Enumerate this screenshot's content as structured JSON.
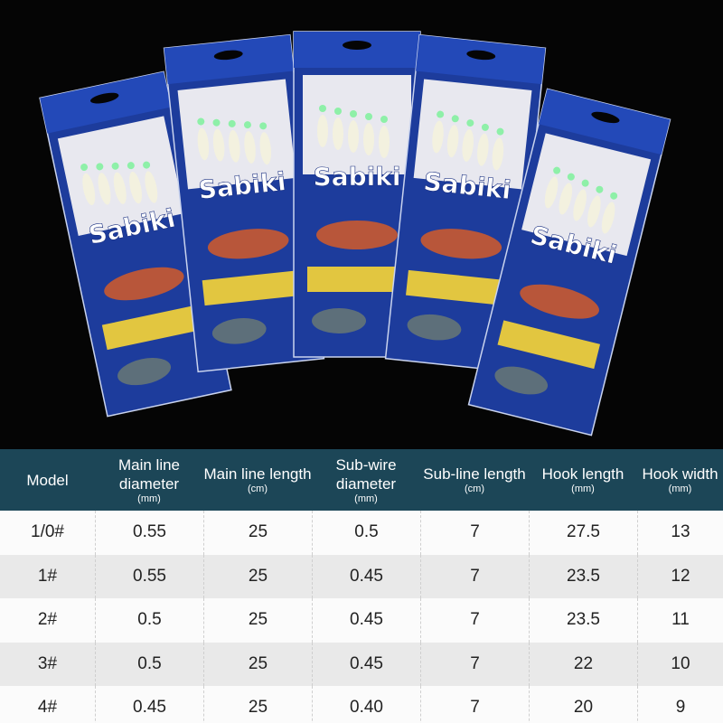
{
  "product": {
    "brand": "Sabiki"
  },
  "table": {
    "header": [
      {
        "title": "Model"
      },
      {
        "title": "Main line diameter",
        "unit": "(mm)"
      },
      {
        "title": "Main line length",
        "unit": "(cm)"
      },
      {
        "title": "Sub-wire diameter",
        "unit": "(mm)"
      },
      {
        "title": "Sub-line length",
        "unit": "(cm)"
      },
      {
        "title": "Hook length",
        "unit": "(mm)"
      },
      {
        "title": "Hook width",
        "unit": "(mm)"
      }
    ],
    "rows": [
      [
        "1/0#",
        "0.55",
        "25",
        "0.5",
        "7",
        "27.5",
        "13"
      ],
      [
        "1#",
        "0.55",
        "25",
        "0.45",
        "7",
        "23.5",
        "12"
      ],
      [
        "2#",
        "0.5",
        "25",
        "0.45",
        "7",
        "23.5",
        "11"
      ],
      [
        "3#",
        "0.5",
        "25",
        "0.45",
        "7",
        "22",
        "10"
      ],
      [
        "4#",
        "0.45",
        "25",
        "0.40",
        "7",
        "20",
        "9"
      ]
    ]
  }
}
